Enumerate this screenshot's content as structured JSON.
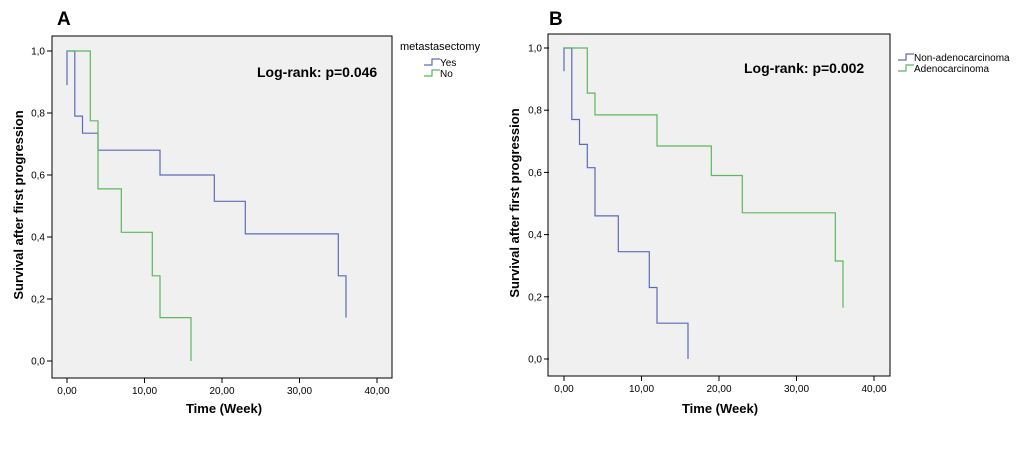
{
  "chart_data": [
    {
      "type": "line",
      "panel": "A",
      "xlabel": "Time (Week)",
      "ylabel": "Survival after first progression",
      "xlim": [
        0,
        40
      ],
      "ylim": [
        0,
        1
      ],
      "xticks": [
        "0,00",
        "10,00",
        "20,00",
        "30,00",
        "40,00"
      ],
      "yticks": [
        "0,0",
        "0,2",
        "0,4",
        "0,6",
        "0,8",
        "1,0"
      ],
      "legend_title": "metastasectomy",
      "legend_position": "top-right-outside",
      "annotation": "Log-rank: p=0.046",
      "series": [
        {
          "name": "Yes",
          "color": "#5c6bb6",
          "x": [
            0,
            0,
            1,
            1,
            2,
            2,
            4,
            4,
            12,
            12,
            19,
            19,
            23,
            23,
            35,
            35,
            36,
            36
          ],
          "y": [
            0.89,
            1.0,
            1.0,
            0.79,
            0.79,
            0.735,
            0.735,
            0.68,
            0.68,
            0.6,
            0.6,
            0.515,
            0.515,
            0.41,
            0.41,
            0.275,
            0.275,
            0.14
          ]
        },
        {
          "name": "No",
          "color": "#5cb85c",
          "x": [
            0,
            3,
            3,
            4,
            4,
            7,
            7,
            11,
            11,
            12,
            12,
            16,
            16
          ],
          "y": [
            1.0,
            1.0,
            0.775,
            0.775,
            0.555,
            0.555,
            0.415,
            0.415,
            0.275,
            0.275,
            0.14,
            0.14,
            0.0
          ]
        }
      ]
    },
    {
      "type": "line",
      "panel": "B",
      "xlabel": "Time (Week)",
      "ylabel": "Survival after first progression",
      "xlim": [
        0,
        40
      ],
      "ylim": [
        0,
        1
      ],
      "xticks": [
        "0,00",
        "10,00",
        "20,00",
        "30,00",
        "40,00"
      ],
      "yticks": [
        "0,0",
        "0,2",
        "0,4",
        "0,6",
        "0,8",
        "1,0"
      ],
      "legend_title": "",
      "legend_position": "top-right-outside",
      "annotation": "Log-rank: p=0.002",
      "series": [
        {
          "name": "Non-adenocarcinoma",
          "color": "#5c6bb6",
          "x": [
            0,
            0,
            1,
            1,
            2,
            2,
            3,
            3,
            4,
            4,
            7,
            7,
            11,
            11,
            12,
            12,
            16,
            16
          ],
          "y": [
            0.925,
            1.0,
            1.0,
            0.77,
            0.77,
            0.69,
            0.69,
            0.615,
            0.615,
            0.46,
            0.46,
            0.345,
            0.345,
            0.23,
            0.23,
            0.115,
            0.115,
            0.0
          ]
        },
        {
          "name": "Adenocarcinoma",
          "color": "#5cb85c",
          "x": [
            0,
            3,
            3,
            4,
            4,
            12,
            12,
            19,
            19,
            23,
            23,
            35,
            35,
            36,
            36
          ],
          "y": [
            1.0,
            1.0,
            0.855,
            0.855,
            0.785,
            0.785,
            0.685,
            0.685,
            0.59,
            0.59,
            0.47,
            0.47,
            0.315,
            0.315,
            0.165
          ]
        }
      ]
    }
  ]
}
